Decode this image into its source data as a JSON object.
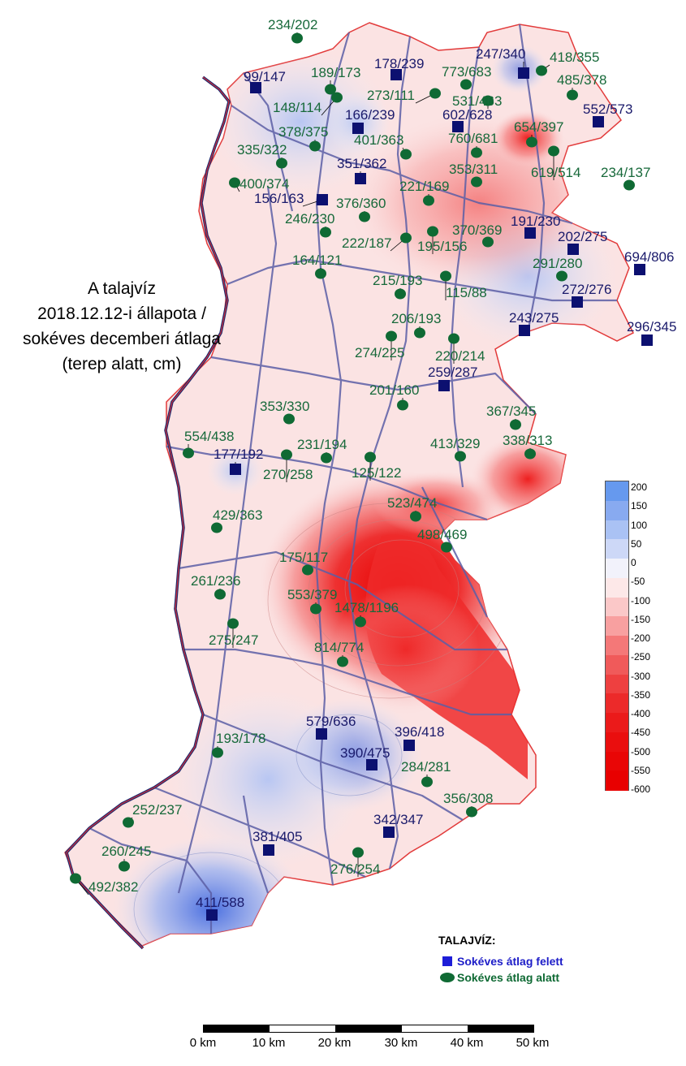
{
  "title": {
    "lines": [
      "A talajvíz",
      "2018.12.12-i állapota /",
      "sokéves decemberi átlaga",
      "(terep alatt, cm)"
    ]
  },
  "legend": {
    "title": "TALAJVÍZ:",
    "above": {
      "label": "Sokéves átlag felett",
      "icon": "blue-square-icon",
      "color": "#1d1dd8"
    },
    "below": {
      "label": "Sokéves átlag alatt",
      "icon": "green-dot-icon",
      "color": "#0f6a34"
    }
  },
  "colorbar": {
    "labels": [
      "200",
      "150",
      "100",
      "50",
      "0",
      "-50",
      "-100",
      "-150",
      "-200",
      "-250",
      "-300",
      "-350",
      "-400",
      "-450",
      "-500",
      "-550",
      "-600"
    ],
    "colors": [
      "#6699ee",
      "#88aaf0",
      "#aac2f4",
      "#cdd8f7",
      "#f2f2fb",
      "#fde8e8",
      "#fbc8c8",
      "#f8a0a0",
      "#f47878",
      "#f05a5a",
      "#ee4040",
      "#ec2a2a",
      "#eb1a1a",
      "#ea0e0e",
      "#e90606",
      "#e80000"
    ]
  },
  "scalebar": {
    "labels": [
      "0 km",
      "10 km",
      "20 km",
      "30 km",
      "40 km",
      "50 km"
    ]
  },
  "stations": [
    {
      "label": "234/202",
      "kind": "below"
    },
    {
      "label": "99/147",
      "kind": "above"
    },
    {
      "label": "189/173",
      "kind": "below"
    },
    {
      "label": "178/239",
      "kind": "above"
    },
    {
      "label": "247/340",
      "kind": "above"
    },
    {
      "label": "418/355",
      "kind": "below"
    },
    {
      "label": "773/683",
      "kind": "below"
    },
    {
      "label": "485/378",
      "kind": "below"
    },
    {
      "label": "273/111",
      "kind": "below"
    },
    {
      "label": "531/463",
      "kind": "below"
    },
    {
      "label": "148/114",
      "kind": "below"
    },
    {
      "label": "166/239",
      "kind": "above"
    },
    {
      "label": "602/628",
      "kind": "above"
    },
    {
      "label": "552/573",
      "kind": "above"
    },
    {
      "label": "654/397",
      "kind": "below"
    },
    {
      "label": "378/375",
      "kind": "below"
    },
    {
      "label": "760/681",
      "kind": "below"
    },
    {
      "label": "335/322",
      "kind": "below"
    },
    {
      "label": "401/363",
      "kind": "below"
    },
    {
      "label": "619/514",
      "kind": "below"
    },
    {
      "label": "351/362",
      "kind": "above"
    },
    {
      "label": "353/311",
      "kind": "below"
    },
    {
      "label": "234/137",
      "kind": "below"
    },
    {
      "label": "400/374",
      "kind": "below"
    },
    {
      "label": "221/169",
      "kind": "below"
    },
    {
      "label": "156/163",
      "kind": "above"
    },
    {
      "label": "376/360",
      "kind": "below"
    },
    {
      "label": "246/230",
      "kind": "below"
    },
    {
      "label": "191/230",
      "kind": "above"
    },
    {
      "label": "370/369",
      "kind": "below"
    },
    {
      "label": "202/275",
      "kind": "above"
    },
    {
      "label": "222/187",
      "kind": "below"
    },
    {
      "label": "195/156",
      "kind": "below"
    },
    {
      "label": "694/806",
      "kind": "above"
    },
    {
      "label": "164/121",
      "kind": "below"
    },
    {
      "label": "291/280",
      "kind": "below"
    },
    {
      "label": "215/193",
      "kind": "below"
    },
    {
      "label": "115/88",
      "kind": "below"
    },
    {
      "label": "272/276",
      "kind": "above"
    },
    {
      "label": "206/193",
      "kind": "below"
    },
    {
      "label": "243/275",
      "kind": "above"
    },
    {
      "label": "296/345",
      "kind": "above"
    },
    {
      "label": "274/225",
      "kind": "below"
    },
    {
      "label": "220/214",
      "kind": "below"
    },
    {
      "label": "259/287",
      "kind": "above"
    },
    {
      "label": "201/160",
      "kind": "below"
    },
    {
      "label": "353/330",
      "kind": "below"
    },
    {
      "label": "367/345",
      "kind": "below"
    },
    {
      "label": "554/438",
      "kind": "below"
    },
    {
      "label": "338/313",
      "kind": "below"
    },
    {
      "label": "231/194",
      "kind": "below"
    },
    {
      "label": "413/329",
      "kind": "below"
    },
    {
      "label": "177/192",
      "kind": "above"
    },
    {
      "label": "270/258",
      "kind": "below"
    },
    {
      "label": "125/122",
      "kind": "below"
    },
    {
      "label": "523/474",
      "kind": "below"
    },
    {
      "label": "429/363",
      "kind": "below"
    },
    {
      "label": "498/469",
      "kind": "below"
    },
    {
      "label": "175/117",
      "kind": "below"
    },
    {
      "label": "261/236",
      "kind": "below"
    },
    {
      "label": "553/379",
      "kind": "below"
    },
    {
      "label": "1478/1196",
      "kind": "below"
    },
    {
      "label": "275/247",
      "kind": "below"
    },
    {
      "label": "814/774",
      "kind": "below"
    },
    {
      "label": "579/636",
      "kind": "above"
    },
    {
      "label": "396/418",
      "kind": "above"
    },
    {
      "label": "193/178",
      "kind": "below"
    },
    {
      "label": "390/475",
      "kind": "above"
    },
    {
      "label": "284/281",
      "kind": "below"
    },
    {
      "label": "356/308",
      "kind": "below"
    },
    {
      "label": "252/237",
      "kind": "below"
    },
    {
      "label": "342/347",
      "kind": "above"
    },
    {
      "label": "381/405",
      "kind": "above"
    },
    {
      "label": "260/245",
      "kind": "below"
    },
    {
      "label": "276/254",
      "kind": "below"
    },
    {
      "label": "492/382",
      "kind": "below"
    },
    {
      "label": "411/588",
      "kind": "above"
    }
  ]
}
